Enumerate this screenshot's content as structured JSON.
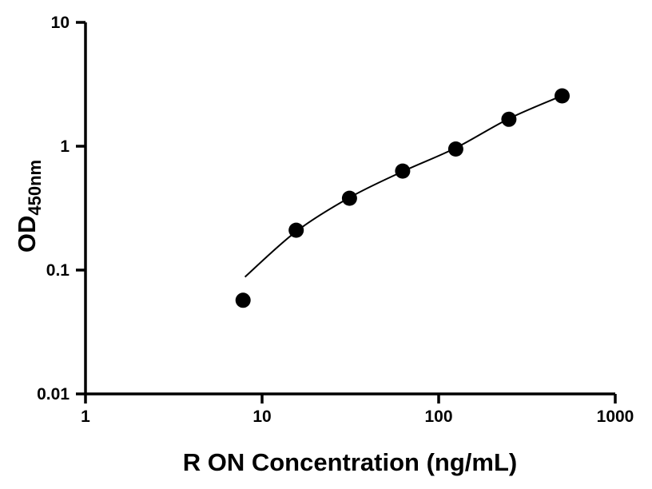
{
  "figure": {
    "background_color": "#ffffff"
  },
  "chart_data": {
    "type": "scatter",
    "title": "",
    "xlabel": "R ON Concentration (ng/mL)",
    "ylabel_main": "OD",
    "ylabel_sub": "450nm",
    "x_scale": "log",
    "y_scale": "log",
    "xlim": [
      1,
      1000
    ],
    "ylim": [
      0.01,
      10
    ],
    "x_ticks": [
      1,
      10,
      100,
      1000
    ],
    "x_tick_labels": [
      "1",
      "10",
      "100",
      "1000"
    ],
    "y_ticks": [
      0.01,
      0.1,
      1,
      10
    ],
    "y_tick_labels": [
      "0.01",
      "0.1",
      "1",
      "10"
    ],
    "grid": false,
    "legend": "none",
    "axis_color": "#000000",
    "marker_color": "#000000",
    "line_color": "#000000",
    "points": [
      {
        "x": 7.8,
        "y": 0.057
      },
      {
        "x": 15.6,
        "y": 0.21
      },
      {
        "x": 31.25,
        "y": 0.38
      },
      {
        "x": 62.5,
        "y": 0.63
      },
      {
        "x": 125,
        "y": 0.95
      },
      {
        "x": 250,
        "y": 1.65
      },
      {
        "x": 500,
        "y": 2.55
      }
    ],
    "fit_curve": [
      {
        "x": 8,
        "y": 0.088
      },
      {
        "x": 15.6,
        "y": 0.205
      },
      {
        "x": 31.25,
        "y": 0.385
      },
      {
        "x": 62.5,
        "y": 0.625
      },
      {
        "x": 125,
        "y": 0.97
      },
      {
        "x": 250,
        "y": 1.67
      },
      {
        "x": 500,
        "y": 2.56
      }
    ]
  }
}
